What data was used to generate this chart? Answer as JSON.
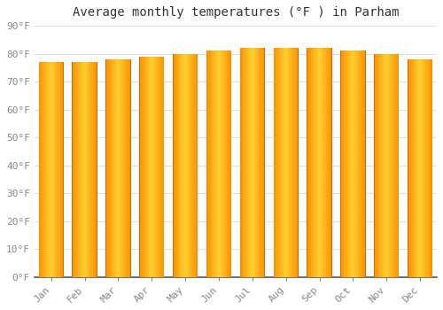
{
  "title": "Average monthly temperatures (°F ) in Parham",
  "months": [
    "Jan",
    "Feb",
    "Mar",
    "Apr",
    "May",
    "Jun",
    "Jul",
    "Aug",
    "Sep",
    "Oct",
    "Nov",
    "Dec"
  ],
  "values": [
    77,
    77,
    78,
    79,
    80,
    81,
    82,
    82,
    82,
    81,
    80,
    78
  ],
  "bar_color_main": "#FFA500",
  "bar_color_light": "#FFD050",
  "bar_color_dark": "#F08000",
  "background_color": "#FFFFFF",
  "plot_bg_color": "#FFFFFF",
  "grid_color": "#DDDDDD",
  "ylim": [
    0,
    90
  ],
  "ytick_step": 10,
  "title_fontsize": 10,
  "tick_fontsize": 8,
  "font_family": "monospace",
  "bar_width": 0.75
}
